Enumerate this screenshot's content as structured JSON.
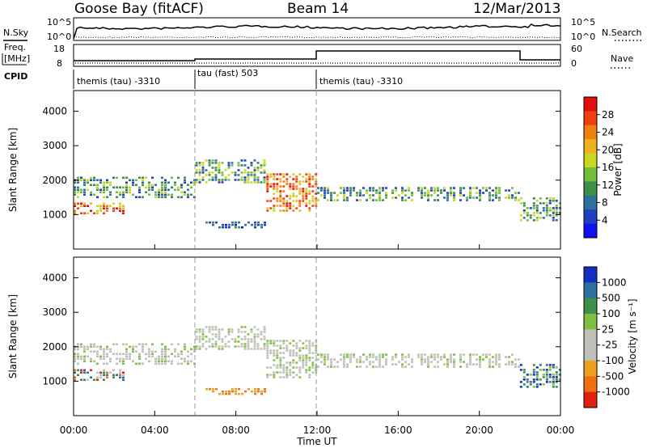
{
  "header": {
    "station": "Goose Bay (fitACF)",
    "beam": "Beam 14",
    "date": "12/Mar/2013"
  },
  "left_labels": {
    "nsky": "N.Sky",
    "freq_line1": "Freq.",
    "freq_line2": "[MHz]",
    "cpid": "CPID"
  },
  "right_labels": {
    "nsearch": "N.Search",
    "nave": "Nave"
  },
  "noise_panel": {
    "left_ticks": [
      "10^5",
      "10^0"
    ],
    "right_ticks": [
      "10^5",
      "10^0"
    ]
  },
  "freq_panel": {
    "left_ticks": [
      "18",
      "8"
    ],
    "right_ticks": [
      "60",
      "0"
    ]
  },
  "cpid_segments": [
    {
      "label": "themis (tau) -3310",
      "start_hour": 0,
      "end_hour": 6
    },
    {
      "label": "tau (fast) 503",
      "start_hour": 6,
      "end_hour": 12
    },
    {
      "label": "themis (tau) -3310",
      "start_hour": 12,
      "end_hour": 24
    }
  ],
  "colorbars": {
    "power": {
      "title": "Power [dB]",
      "ticks": [
        "28",
        "24",
        "20",
        "16",
        "12",
        "8",
        "4"
      ],
      "colors": [
        "#e01010",
        "#f04010",
        "#f08010",
        "#f0b020",
        "#c8d820",
        "#6fbf3a",
        "#3f8f4a",
        "#2f6fa0",
        "#2040c0",
        "#1010f0"
      ]
    },
    "velocity": {
      "title": "Velocity [m s⁻¹]",
      "ticks": [
        "1000",
        "500",
        "100",
        "25",
        "-25",
        "-100",
        "-500",
        "-1000"
      ],
      "colors": [
        "#1030c0",
        "#2f6fa0",
        "#3f8f4a",
        "#80c040",
        "#c0c0b8",
        "#c0c0b8",
        "#f0a020",
        "#f07010",
        "#e02010"
      ]
    }
  },
  "x_axis": {
    "title": "Time UT",
    "ticks": [
      "00:00",
      "04:00",
      "08:00",
      "12:00",
      "16:00",
      "20:00",
      "00:00"
    ]
  },
  "chart_data": [
    {
      "type": "heatmap",
      "title": "",
      "ylabel": "Slant Range [km]",
      "xlabel": "Time UT",
      "xlim_hours": [
        0,
        24
      ],
      "ylim": [
        0,
        4600
      ],
      "y_ticks": [
        1000,
        2000,
        3000,
        4000
      ],
      "colorbar": "Power [dB]",
      "echo_bands": [
        {
          "start_hour": 0.0,
          "end_hour": 2.5,
          "range_low_km": 1000,
          "range_high_km": 1350,
          "level": "high"
        },
        {
          "start_hour": 0.0,
          "end_hour": 6.0,
          "range_low_km": 1500,
          "range_high_km": 2100,
          "level": "medium"
        },
        {
          "start_hour": 6.0,
          "end_hour": 9.5,
          "range_low_km": 1950,
          "range_high_km": 2600,
          "level": "medium"
        },
        {
          "start_hour": 6.5,
          "end_hour": 9.5,
          "range_low_km": 600,
          "range_high_km": 800,
          "level": "low"
        },
        {
          "start_hour": 9.5,
          "end_hour": 12.0,
          "range_low_km": 1100,
          "range_high_km": 2200,
          "level": "high"
        },
        {
          "start_hour": 12.0,
          "end_hour": 22.0,
          "range_low_km": 1400,
          "range_high_km": 1800,
          "level": "medium"
        },
        {
          "start_hour": 22.0,
          "end_hour": 24.0,
          "range_low_km": 800,
          "range_high_km": 1500,
          "level": "medium"
        }
      ]
    },
    {
      "type": "heatmap",
      "title": "",
      "ylabel": "Slant Range [km]",
      "xlabel": "Time UT",
      "xlim_hours": [
        0,
        24
      ],
      "ylim": [
        0,
        4600
      ],
      "y_ticks": [
        1000,
        2000,
        3000,
        4000
      ],
      "colorbar": "Velocity [m s⁻¹]",
      "echo_bands": [
        {
          "start_hour": 0.0,
          "end_hour": 2.5,
          "range_low_km": 1000,
          "range_high_km": 1350,
          "level": "mixed"
        },
        {
          "start_hour": 0.0,
          "end_hour": 6.0,
          "range_low_km": 1500,
          "range_high_km": 2100,
          "level": "near-zero"
        },
        {
          "start_hour": 6.0,
          "end_hour": 9.5,
          "range_low_km": 1950,
          "range_high_km": 2600,
          "level": "near-zero"
        },
        {
          "start_hour": 6.5,
          "end_hour": 9.5,
          "range_low_km": 600,
          "range_high_km": 800,
          "level": "negative"
        },
        {
          "start_hour": 9.5,
          "end_hour": 12.0,
          "range_low_km": 1100,
          "range_high_km": 2200,
          "level": "near-zero"
        },
        {
          "start_hour": 12.0,
          "end_hour": 22.0,
          "range_low_km": 1400,
          "range_high_km": 1800,
          "level": "near-zero"
        },
        {
          "start_hour": 22.0,
          "end_hour": 24.0,
          "range_low_km": 800,
          "range_high_km": 1500,
          "level": "positive"
        }
      ]
    }
  ]
}
